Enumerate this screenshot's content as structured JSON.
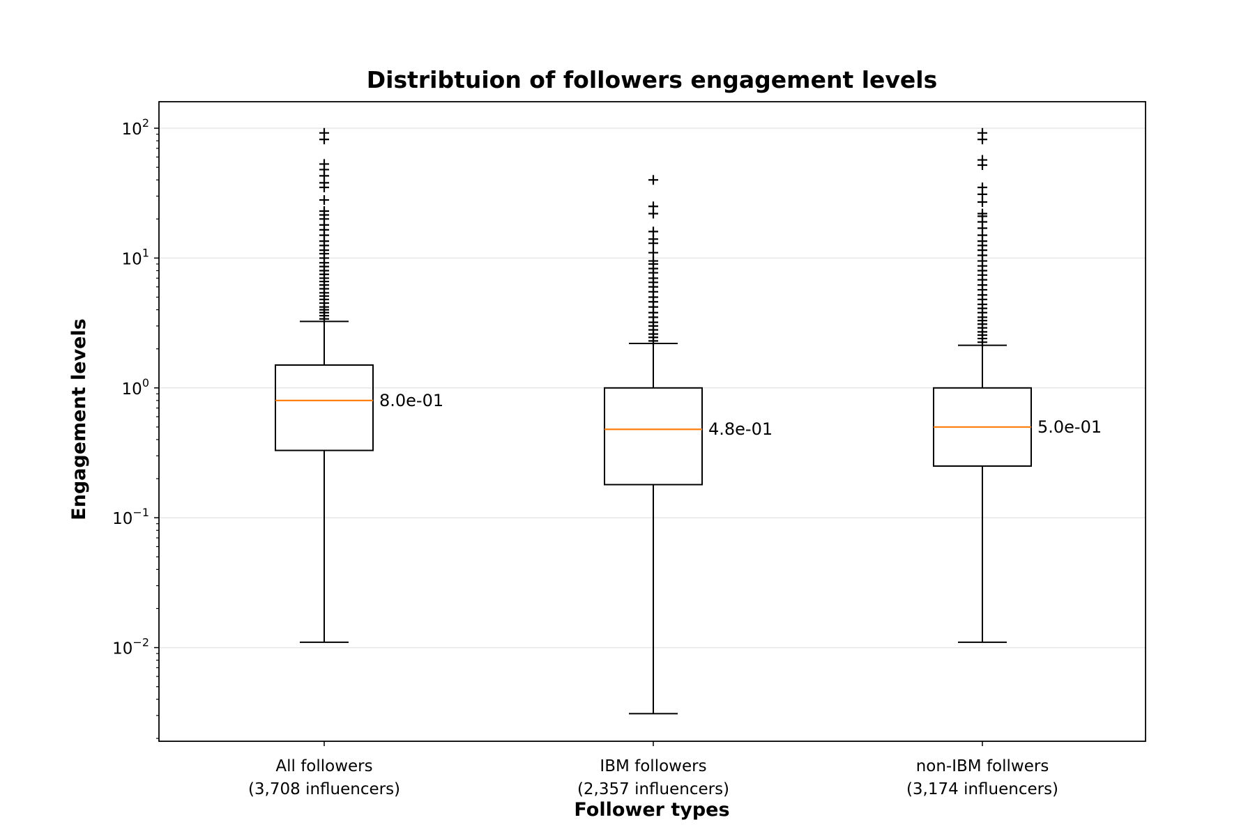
{
  "chart_data": {
    "type": "box",
    "title": "Distribtuion of followers engagement levels",
    "xlabel": "Follower types",
    "ylabel": "Engagement levels",
    "yscale": "log",
    "ylim": [
      0.0019,
      160
    ],
    "grid": "y",
    "yticks": [
      {
        "value": 100,
        "base": "10",
        "exp": "2"
      },
      {
        "value": 10,
        "base": "10",
        "exp": "1"
      },
      {
        "value": 1,
        "base": "10",
        "exp": "0"
      },
      {
        "value": 0.1,
        "base": "10",
        "exp": "−1"
      },
      {
        "value": 0.01,
        "base": "10",
        "exp": "−2"
      }
    ],
    "colors": {
      "box": "#000000",
      "median": "#ff7f0e",
      "grid": "#e6e6e6"
    },
    "categories": [
      {
        "label": [
          "All followers",
          "(3,708 influencers)"
        ],
        "whisker_low": 0.011,
        "q1": 0.33,
        "median": 0.8,
        "q3": 1.5,
        "whisker_high": 3.25,
        "median_label": "8.0e-01",
        "outliers": [
          3.4,
          3.6,
          3.8,
          4.0,
          4.2,
          4.5,
          4.8,
          5.1,
          5.4,
          5.8,
          6.2,
          6.6,
          7.0,
          7.5,
          8.0,
          8.6,
          9.2,
          10,
          10.8,
          11.5,
          12.5,
          13.5,
          15,
          16.5,
          18,
          20,
          21.5,
          23,
          28,
          35,
          38,
          43,
          48,
          53,
          82,
          92
        ]
      },
      {
        "label": [
          "IBM followers",
          "(2,357 influencers)"
        ],
        "whisker_low": 0.0031,
        "q1": 0.18,
        "median": 0.48,
        "q3": 1.0,
        "whisker_high": 2.2,
        "median_label": "4.8e-01",
        "outliers": [
          2.3,
          2.45,
          2.6,
          2.8,
          3.0,
          3.2,
          3.5,
          3.8,
          4.2,
          4.6,
          5.0,
          5.5,
          6.0,
          6.5,
          7.0,
          7.7,
          8.3,
          9.0,
          9.5,
          11,
          13,
          14,
          16,
          22,
          25,
          40
        ]
      },
      {
        "label": [
          "non-IBM follwers",
          "(3,174 influencers)"
        ],
        "whisker_low": 0.011,
        "q1": 0.25,
        "median": 0.5,
        "q3": 1.0,
        "whisker_high": 2.13,
        "median_label": "5.0e-01",
        "outliers": [
          2.25,
          2.4,
          2.55,
          2.7,
          2.9,
          3.1,
          3.3,
          3.5,
          3.8,
          4.1,
          4.4,
          4.8,
          5.2,
          5.7,
          6.2,
          6.8,
          7.4,
          8.0,
          8.7,
          9.5,
          10.5,
          11.5,
          12.5,
          13.5,
          15,
          17,
          19,
          21,
          22,
          27,
          31,
          35,
          52,
          57,
          82,
          92
        ]
      }
    ]
  }
}
